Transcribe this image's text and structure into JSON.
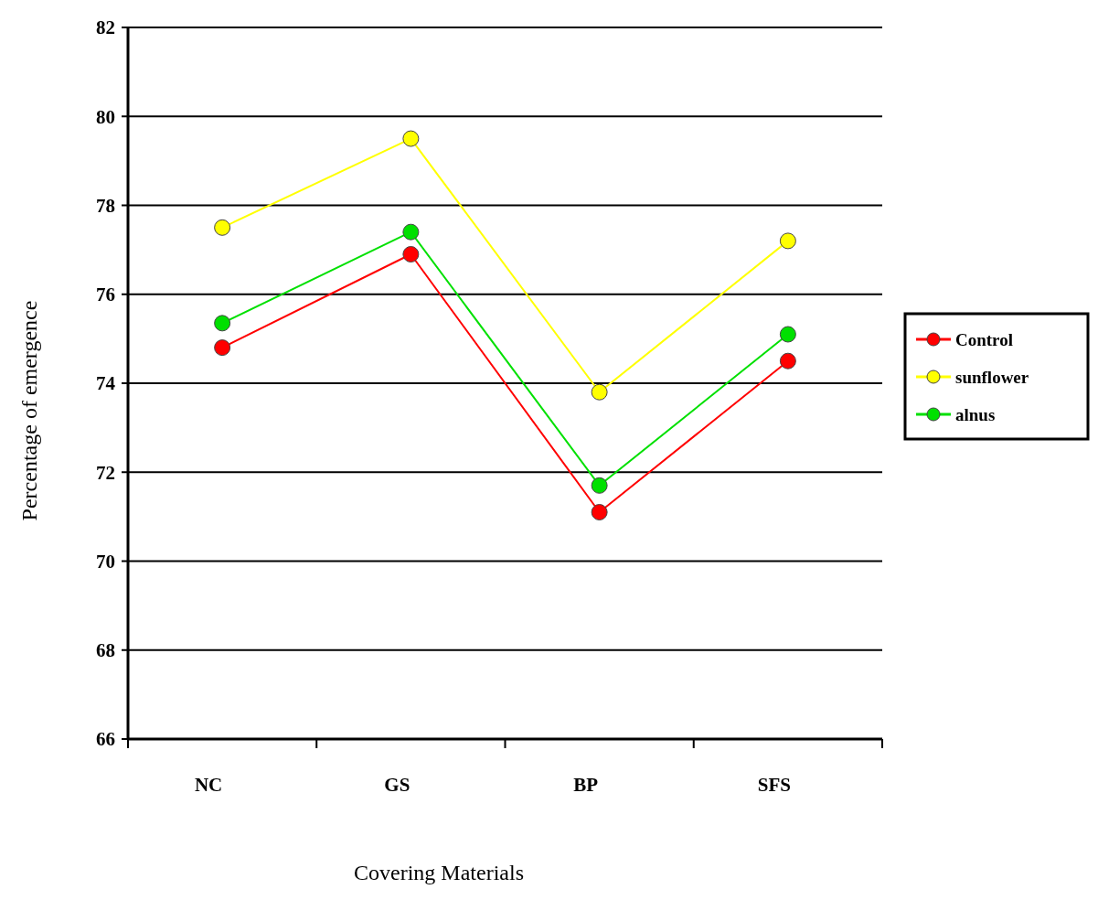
{
  "chart_data": {
    "type": "line",
    "xlabel": "Covering Materials",
    "ylabel": "Percentage of emergence",
    "categories": [
      "NC",
      "GS",
      "BP",
      "SFS"
    ],
    "series": [
      {
        "name": "Control",
        "color": "#ff0000",
        "values": [
          74.8,
          76.9,
          71.1,
          74.5
        ]
      },
      {
        "name": "sunflower",
        "color": "#ffff00",
        "values": [
          77.5,
          79.5,
          73.8,
          77.2
        ]
      },
      {
        "name": "alnus",
        "color": "#00e000",
        "values": [
          75.35,
          77.4,
          71.7,
          75.1
        ]
      }
    ],
    "ylim": [
      66,
      82
    ],
    "yticks": [
      66,
      68,
      70,
      72,
      74,
      76,
      78,
      80,
      82
    ],
    "grid": "y",
    "legend": "right",
    "marker": "circle",
    "line_style": "solid"
  }
}
